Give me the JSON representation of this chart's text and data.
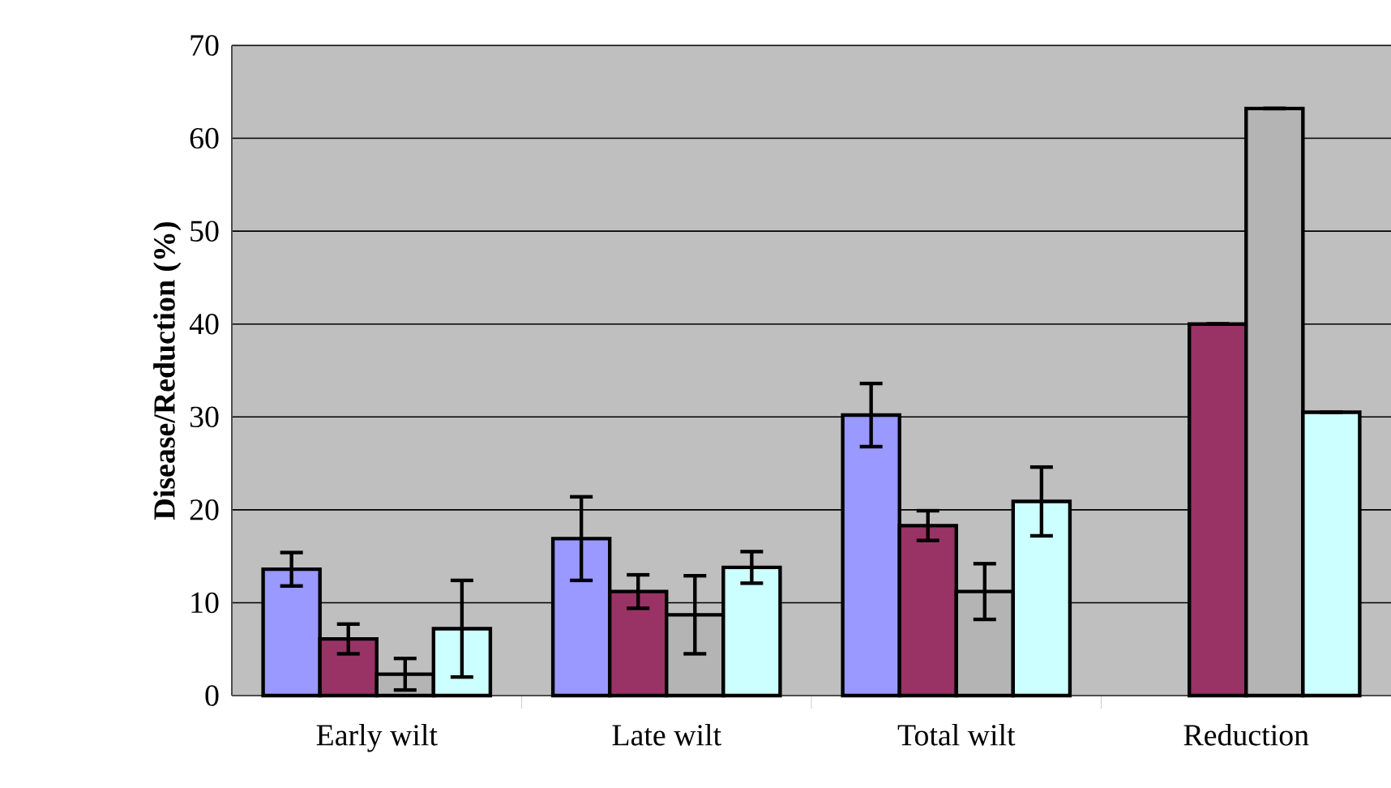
{
  "chart_data": {
    "type": "bar",
    "ylabel": "Disease/Reduction (%)",
    "categories": [
      "Early wilt",
      "Late wilt",
      "Total wilt",
      "Reduction"
    ],
    "series": [
      {
        "color": "#9999ff",
        "values": [
          13.6,
          16.9,
          30.2,
          null
        ],
        "errors": [
          1.8,
          4.5,
          3.4,
          null
        ]
      },
      {
        "color": "#993366",
        "values": [
          6.1,
          11.2,
          18.3,
          40
        ],
        "errors": [
          1.6,
          1.8,
          1.6,
          null
        ]
      },
      {
        "color": "#b4b4b4",
        "values": [
          2.3,
          8.7,
          11.2,
          63.2
        ],
        "errors": [
          1.7,
          4.2,
          3.0,
          null
        ]
      },
      {
        "color": "#ccffff",
        "values": [
          7.2,
          13.8,
          20.9,
          30.5
        ],
        "errors": [
          5.2,
          1.7,
          3.7,
          null
        ]
      }
    ],
    "ylim": [
      0,
      70
    ],
    "yticks": [
      0,
      10,
      20,
      30,
      40,
      50,
      60,
      70
    ],
    "grid": "y"
  }
}
